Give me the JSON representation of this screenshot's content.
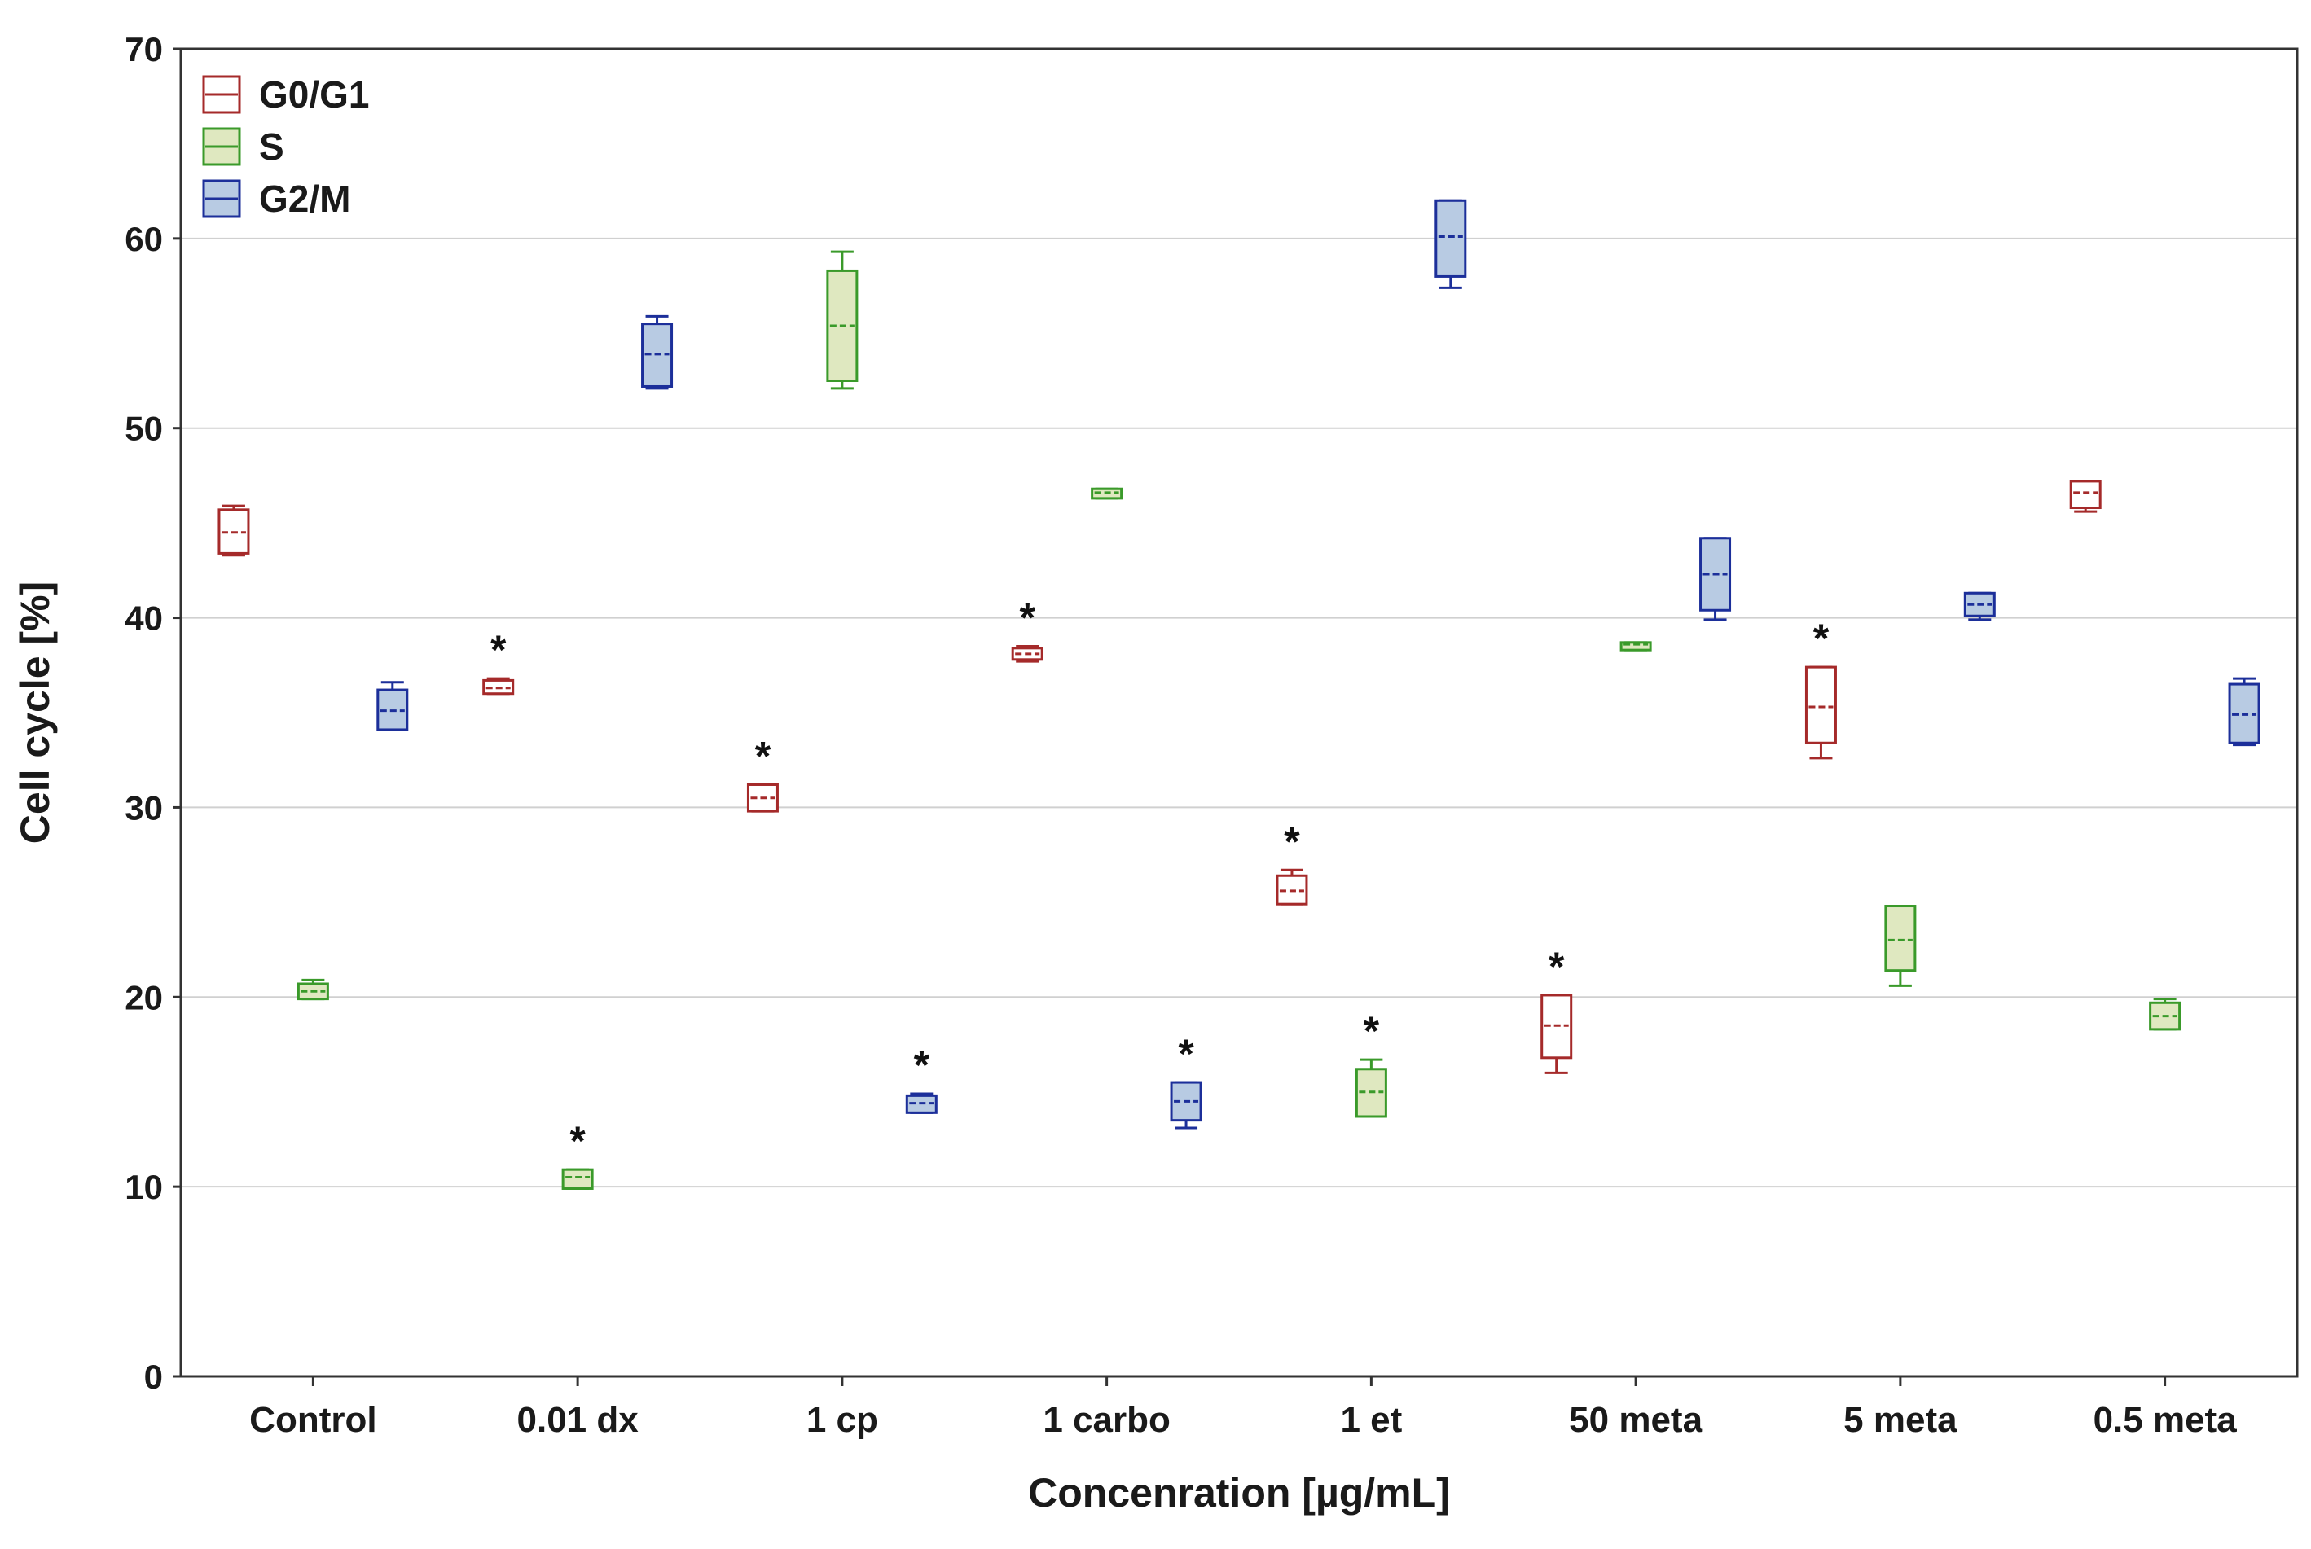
{
  "chart_data": {
    "type": "box",
    "xlabel": "Concenration [µg/mL]",
    "ylabel": "Cell cycle [%]",
    "ylim": [
      0,
      70
    ],
    "yticks": [
      0,
      10,
      20,
      30,
      40,
      50,
      60,
      70
    ],
    "grid": true,
    "legend_position": "top-left",
    "significance_marker": "*",
    "categories": [
      "Control",
      "0.01 dx",
      "1 cp",
      "1 carbo",
      "1 et",
      "50 meta",
      "5 meta",
      "0.5 meta"
    ],
    "series": [
      {
        "name": "G0/G1",
        "stroke": "#a52a2a",
        "fill": "#ffffff",
        "boxes": [
          {
            "min": 43.3,
            "q1": 43.4,
            "median": 44.5,
            "q3": 45.7,
            "max": 45.9,
            "sig": false
          },
          {
            "min": 36.0,
            "q1": 36.0,
            "median": 36.3,
            "q3": 36.7,
            "max": 36.8,
            "sig": true
          },
          {
            "min": 29.8,
            "q1": 29.8,
            "median": 30.5,
            "q3": 31.2,
            "max": 31.2,
            "sig": true
          },
          {
            "min": 37.7,
            "q1": 37.8,
            "median": 38.1,
            "q3": 38.4,
            "max": 38.5,
            "sig": true
          },
          {
            "min": 24.9,
            "q1": 24.9,
            "median": 25.6,
            "q3": 26.4,
            "max": 26.7,
            "sig": true
          },
          {
            "min": 16.0,
            "q1": 16.8,
            "median": 18.5,
            "q3": 20.1,
            "max": 20.1,
            "sig": true
          },
          {
            "min": 32.6,
            "q1": 33.4,
            "median": 35.3,
            "q3": 37.4,
            "max": 37.4,
            "sig": true
          },
          {
            "min": 45.6,
            "q1": 45.8,
            "median": 46.6,
            "q3": 47.2,
            "max": 47.2,
            "sig": false
          }
        ]
      },
      {
        "name": "S",
        "stroke": "#3a9a2a",
        "fill": "#dfe8c0",
        "boxes": [
          {
            "min": 19.9,
            "q1": 19.9,
            "median": 20.3,
            "q3": 20.7,
            "max": 20.9,
            "sig": false
          },
          {
            "min": 9.9,
            "q1": 9.9,
            "median": 10.5,
            "q3": 10.9,
            "max": 10.9,
            "sig": true
          },
          {
            "min": 52.1,
            "q1": 52.5,
            "median": 55.4,
            "q3": 58.3,
            "max": 59.3,
            "sig": false
          },
          {
            "min": 46.3,
            "q1": 46.3,
            "median": 46.6,
            "q3": 46.8,
            "max": 46.8,
            "sig": false
          },
          {
            "min": 13.7,
            "q1": 13.7,
            "median": 15.0,
            "q3": 16.2,
            "max": 16.7,
            "sig": true
          },
          {
            "min": 38.3,
            "q1": 38.3,
            "median": 38.6,
            "q3": 38.7,
            "max": 38.7,
            "sig": false
          },
          {
            "min": 20.6,
            "q1": 21.4,
            "median": 23.0,
            "q3": 24.8,
            "max": 24.8,
            "sig": false
          },
          {
            "min": 18.3,
            "q1": 18.3,
            "median": 19.0,
            "q3": 19.7,
            "max": 19.9,
            "sig": false
          }
        ]
      },
      {
        "name": "G2/M",
        "stroke": "#1c2f9a",
        "fill": "#b8cbe3",
        "boxes": [
          {
            "min": 34.1,
            "q1": 34.1,
            "median": 35.1,
            "q3": 36.2,
            "max": 36.6,
            "sig": false
          },
          {
            "min": 52.1,
            "q1": 52.2,
            "median": 53.9,
            "q3": 55.5,
            "max": 55.9,
            "sig": false
          },
          {
            "min": 13.9,
            "q1": 13.9,
            "median": 14.4,
            "q3": 14.8,
            "max": 14.9,
            "sig": true
          },
          {
            "min": 13.1,
            "q1": 13.5,
            "median": 14.5,
            "q3": 15.5,
            "max": 15.5,
            "sig": true
          },
          {
            "min": 57.4,
            "q1": 58.0,
            "median": 60.1,
            "q3": 62.0,
            "max": 62.0,
            "sig": false
          },
          {
            "min": 39.9,
            "q1": 40.4,
            "median": 42.3,
            "q3": 44.2,
            "max": 44.2,
            "sig": false
          },
          {
            "min": 39.9,
            "q1": 40.1,
            "median": 40.7,
            "q3": 41.3,
            "max": 41.3,
            "sig": false
          },
          {
            "min": 33.3,
            "q1": 33.4,
            "median": 34.9,
            "q3": 36.5,
            "max": 36.8,
            "sig": false
          }
        ]
      }
    ]
  }
}
